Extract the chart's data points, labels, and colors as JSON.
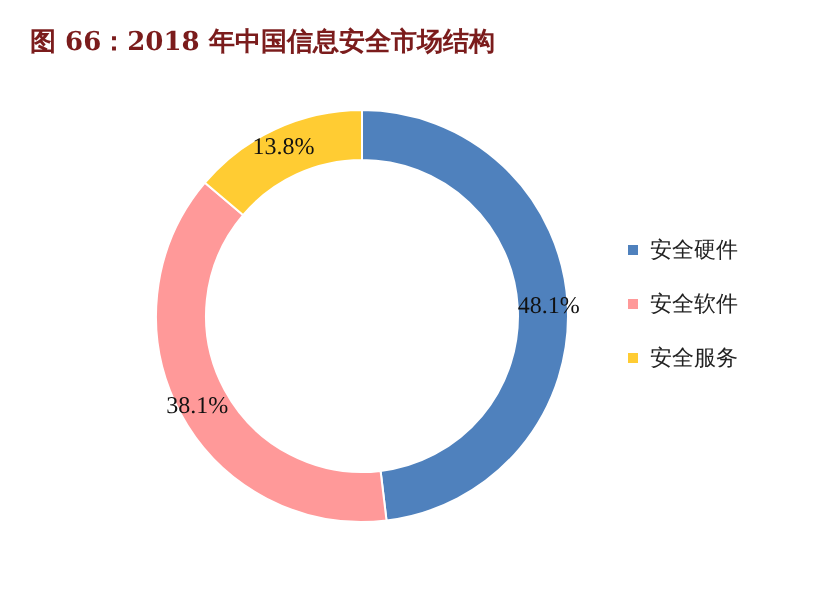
{
  "chart_data": {
    "type": "donut",
    "title": "图 66：2018 年中国信息安全市场结构",
    "categories": [
      "安全硬件",
      "安全软件",
      "安全服务"
    ],
    "values": [
      48.1,
      38.1,
      13.8
    ],
    "colors": [
      "#4f81bd",
      "#ff9999",
      "#ffcc33"
    ],
    "value_labels": [
      "48.1%",
      "38.1%",
      "13.8%"
    ],
    "legend": "right"
  }
}
